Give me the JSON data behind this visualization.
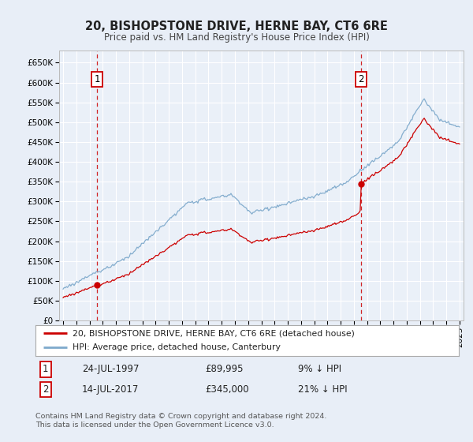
{
  "title": "20, BISHOPSTONE DRIVE, HERNE BAY, CT6 6RE",
  "subtitle": "Price paid vs. HM Land Registry's House Price Index (HPI)",
  "legend_line1": "20, BISHOPSTONE DRIVE, HERNE BAY, CT6 6RE (detached house)",
  "legend_line2": "HPI: Average price, detached house, Canterbury",
  "annotation1_date": "24-JUL-1997",
  "annotation1_price": "£89,995",
  "annotation1_hpi": "9% ↓ HPI",
  "annotation2_date": "14-JUL-2017",
  "annotation2_price": "£345,000",
  "annotation2_hpi": "21% ↓ HPI",
  "footer": "Contains HM Land Registry data © Crown copyright and database right 2024.\nThis data is licensed under the Open Government Licence v3.0.",
  "red_color": "#cc0000",
  "blue_color": "#7faacc",
  "background_color": "#e8eef7",
  "plot_bg": "#eaf0f8",
  "grid_color": "#ffffff",
  "dashed_color": "#cc0000",
  "ylim_low": 0,
  "ylim_high": 680000,
  "yticks": [
    0,
    50000,
    100000,
    150000,
    200000,
    250000,
    300000,
    350000,
    400000,
    450000,
    500000,
    550000,
    600000,
    650000
  ],
  "ytick_labels": [
    "£0",
    "£50K",
    "£100K",
    "£150K",
    "£200K",
    "£250K",
    "£300K",
    "£350K",
    "£400K",
    "£450K",
    "£500K",
    "£550K",
    "£600K",
    "£650K"
  ],
  "sale1_x": 1997.56,
  "sale1_y": 89995,
  "sale2_x": 2017.54,
  "sale2_y": 345000,
  "xlim_low": 1994.7,
  "xlim_high": 2025.3,
  "box_color": "#cc0000"
}
